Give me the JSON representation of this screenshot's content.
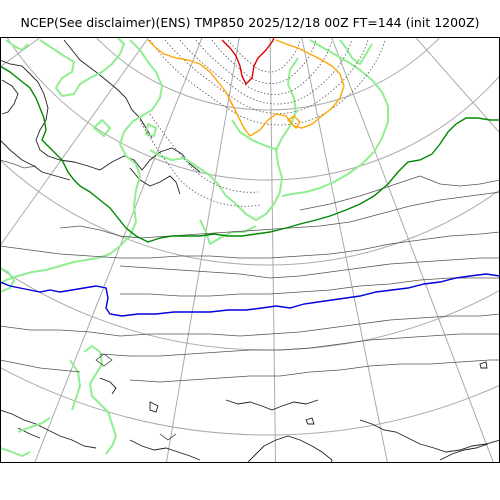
{
  "title": "NCEP(See disclaimer)(ENS) TMP850 2025/12/18 00Z FT=144 (init 1200Z)",
  "map": {
    "projection": "polar-stereographic",
    "colors": {
      "coastline": "#222222",
      "graticule": "#aaaaaa",
      "isotherm_dotted": "#555555",
      "isotherm_solid": "#555555",
      "isotherm_0c": "#0000dd",
      "isotherm_green": "#008800",
      "isotherm_orange": "#ffa500",
      "isotherm_red": "#dd0000",
      "ensemble_spread": "#90ee90"
    }
  }
}
